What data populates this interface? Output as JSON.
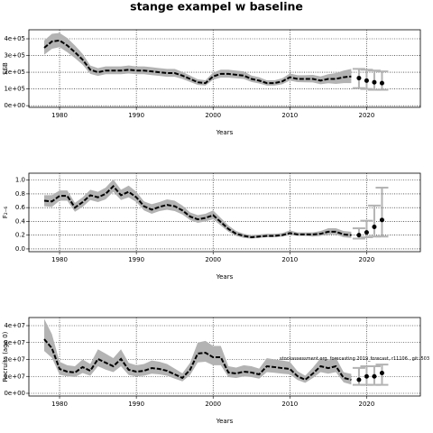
{
  "chart_data": [
    {
      "type": "line",
      "title": "stange exampel w baseline",
      "xlabel": "Years",
      "ylabel": "SSB",
      "x": [
        1978,
        1979,
        1980,
        1981,
        1982,
        1983,
        1984,
        1985,
        1986,
        1987,
        1988,
        1989,
        1990,
        1991,
        1992,
        1993,
        1994,
        1995,
        1996,
        1997,
        1998,
        1999,
        2000,
        2001,
        2002,
        2003,
        2004,
        2005,
        2006,
        2007,
        2008,
        2009,
        2010,
        2011,
        2012,
        2013,
        2014,
        2015,
        2016,
        2017,
        2018
      ],
      "values": [
        346000.0,
        384000.0,
        390000.0,
        360000.0,
        320000.0,
        275000.0,
        215000.0,
        200000.0,
        210000.0,
        210000.0,
        210000.0,
        215000.0,
        210000.0,
        210000.0,
        205000.0,
        200000.0,
        195000.0,
        195000.0,
        180000.0,
        160000.0,
        140000.0,
        135000.0,
        175000.0,
        190000.0,
        190000.0,
        185000.0,
        180000.0,
        160000.0,
        150000.0,
        135000.0,
        135000.0,
        145000.0,
        170000.0,
        160000.0,
        160000.0,
        160000.0,
        150000.0,
        160000.0,
        160000.0,
        170000.0,
        175000.0
      ],
      "low": [
        305000.0,
        340000.0,
        350000.0,
        320000.0,
        285000.0,
        245000.0,
        190000.0,
        178000.0,
        188000.0,
        188000.0,
        188000.0,
        192000.0,
        188000.0,
        188000.0,
        183000.0,
        178000.0,
        173000.0,
        173000.0,
        160000.0,
        142000.0,
        124000.0,
        120000.0,
        155000.0,
        168000.0,
        168000.0,
        164000.0,
        160000.0,
        142000.0,
        133000.0,
        120000.0,
        120000.0,
        128000.0,
        150000.0,
        141000.0,
        140000.0,
        139000.0,
        128000.0,
        134000.0,
        130000.0,
        135000.0,
        135000.0
      ],
      "high": [
        390000.0,
        430000.0,
        435000.0,
        405000.0,
        360000.0,
        310000.0,
        240000.0,
        225000.0,
        235000.0,
        235000.0,
        235000.0,
        240000.0,
        235000.0,
        235000.0,
        230000.0,
        225000.0,
        220000.0,
        220000.0,
        202000.0,
        180000.0,
        158000.0,
        152000.0,
        198000.0,
        215000.0,
        215000.0,
        210000.0,
        205000.0,
        180000.0,
        170000.0,
        152000.0,
        152000.0,
        164000.0,
        192000.0,
        182000.0,
        182000.0,
        184000.0,
        175000.0,
        188000.0,
        195000.0,
        210000.0,
        220000.0
      ],
      "forecast": {
        "x": [
          2019,
          2020,
          2021,
          2022
        ],
        "values": [
          165000.0,
          150000.0,
          140000.0,
          135000.0
        ],
        "low": [
          105000.0,
          100000.0,
          95000.0,
          95000.0
        ],
        "high": [
          220000.0,
          215000.0,
          210000.0,
          205000.0
        ]
      },
      "xlim": [
        1976,
        2027
      ],
      "xticks": [
        1980,
        1990,
        2000,
        2010,
        2020
      ],
      "ylim": [
        -10000,
        454000
      ],
      "yticks": [
        {
          "value": 0,
          "label": "0e+00"
        },
        {
          "value": 100000,
          "label": "1e+05"
        },
        {
          "value": 200000,
          "label": "2e+05"
        },
        {
          "value": 300000,
          "label": "3e+05"
        },
        {
          "value": 400000,
          "label": "4e+05"
        }
      ],
      "grid": true,
      "color": "#000000",
      "band_color": "#b3b3b3"
    },
    {
      "type": "line",
      "xlabel": "Years",
      "ylabel": "F₂₋₆",
      "x": [
        1978,
        1979,
        1980,
        1981,
        1982,
        1983,
        1984,
        1985,
        1986,
        1987,
        1988,
        1989,
        1990,
        1991,
        1992,
        1993,
        1994,
        1995,
        1996,
        1997,
        1998,
        1999,
        2000,
        2001,
        2002,
        2003,
        2004,
        2005,
        2006,
        2007,
        2008,
        2009,
        2010,
        2011,
        2012,
        2013,
        2014,
        2015,
        2016,
        2017,
        2018
      ],
      "values": [
        0.7,
        0.69,
        0.77,
        0.77,
        0.6,
        0.68,
        0.78,
        0.75,
        0.8,
        0.91,
        0.78,
        0.83,
        0.75,
        0.62,
        0.57,
        0.61,
        0.64,
        0.62,
        0.56,
        0.47,
        0.43,
        0.45,
        0.49,
        0.39,
        0.29,
        0.22,
        0.19,
        0.17,
        0.18,
        0.19,
        0.19,
        0.2,
        0.23,
        0.21,
        0.21,
        0.21,
        0.22,
        0.25,
        0.25,
        0.21,
        0.2
      ],
      "low": [
        0.62,
        0.61,
        0.7,
        0.7,
        0.54,
        0.61,
        0.71,
        0.68,
        0.72,
        0.83,
        0.71,
        0.75,
        0.68,
        0.56,
        0.51,
        0.55,
        0.57,
        0.55,
        0.5,
        0.42,
        0.38,
        0.4,
        0.43,
        0.34,
        0.25,
        0.19,
        0.16,
        0.15,
        0.16,
        0.17,
        0.17,
        0.18,
        0.2,
        0.19,
        0.19,
        0.18,
        0.19,
        0.21,
        0.21,
        0.17,
        0.16
      ],
      "high": [
        0.78,
        0.78,
        0.85,
        0.85,
        0.67,
        0.75,
        0.86,
        0.83,
        0.89,
        1.01,
        0.86,
        0.92,
        0.83,
        0.69,
        0.65,
        0.68,
        0.72,
        0.7,
        0.63,
        0.53,
        0.49,
        0.51,
        0.56,
        0.45,
        0.34,
        0.26,
        0.22,
        0.2,
        0.21,
        0.22,
        0.22,
        0.23,
        0.27,
        0.24,
        0.24,
        0.24,
        0.26,
        0.3,
        0.3,
        0.26,
        0.25
      ],
      "forecast": {
        "x": [
          2019,
          2020,
          2021,
          2022
        ],
        "values": [
          0.2,
          0.24,
          0.32,
          0.42
        ],
        "low": [
          0.15,
          0.17,
          0.18,
          0.18
        ],
        "high": [
          0.3,
          0.41,
          0.63,
          0.89
        ]
      },
      "xlim": [
        1976,
        2027
      ],
      "xticks": [
        1980,
        1990,
        2000,
        2010,
        2020
      ],
      "ylim": [
        -0.04,
        1.1
      ],
      "yticks": [
        {
          "value": 0,
          "label": "0.0"
        },
        0.2,
        0.4,
        0.6,
        0.8,
        {
          "value": 1,
          "label": "1.0"
        }
      ],
      "grid": true,
      "color": "#000000",
      "band_color": "#b3b3b3"
    },
    {
      "type": "line",
      "xlabel": "Years",
      "ylabel": "Recruits (age 0)",
      "annotation": "stockassessment.org, forecasting 2019_forecast, r11106 , git: 503",
      "x": [
        1978,
        1979,
        1980,
        1981,
        1982,
        1983,
        1984,
        1985,
        1986,
        1987,
        1988,
        1989,
        1990,
        1991,
        1992,
        1993,
        1994,
        1995,
        1996,
        1997,
        1998,
        1999,
        2000,
        2001,
        2002,
        2003,
        2004,
        2005,
        2006,
        2007,
        2008,
        2009,
        2010,
        2011,
        2012,
        2013,
        2014,
        2015,
        2016,
        2017,
        2018
      ],
      "values": [
        32000000.0,
        26700000.0,
        14400000.0,
        12800000.0,
        12300000.0,
        15500000.0,
        13300000.0,
        20300000.0,
        18100000.0,
        16000000.0,
        20300000.0,
        13900000.0,
        12800000.0,
        13300000.0,
        14900000.0,
        14400000.0,
        13300000.0,
        11200000.0,
        9100000.0,
        13900000.0,
        23500000.0,
        24000000.0,
        21300000.0,
        21300000.0,
        12300000.0,
        11700000.0,
        12800000.0,
        12300000.0,
        11200000.0,
        16000000.0,
        15500000.0,
        14900000.0,
        14400000.0,
        10100000.0,
        8000000.0,
        11700000.0,
        16000000.0,
        14900000.0,
        16000000.0,
        9100000.0,
        8000000.0
      ],
      "low": [
        25000000.0,
        21000000.0,
        11000000.0,
        10000000.0,
        9600000.0,
        12000000.0,
        10400000.0,
        16000000.0,
        14000000.0,
        12500000.0,
        16000000.0,
        10800000.0,
        10000000.0,
        10400000.0,
        11600000.0,
        11200000.0,
        10400000.0,
        8700000.0,
        7100000.0,
        10800000.0,
        18300000.0,
        18700000.0,
        16600000.0,
        16600000.0,
        9600000.0,
        9100000.0,
        10000000.0,
        9600000.0,
        8700000.0,
        12500000.0,
        12100000.0,
        11600000.0,
        11200000.0,
        7900000.0,
        6200000.0,
        9100000.0,
        12500000.0,
        11600000.0,
        12500000.0,
        6500000.0,
        5200000.0
      ],
      "high": [
        44000000.0,
        35000000.0,
        18700000.0,
        16600000.0,
        16000000.0,
        20000000.0,
        17300000.0,
        26000000.0,
        23500000.0,
        20800000.0,
        26000000.0,
        18000000.0,
        16600000.0,
        17300000.0,
        19400000.0,
        18700000.0,
        17300000.0,
        14600000.0,
        11800000.0,
        18000000.0,
        30000000.0,
        31000000.0,
        28000000.0,
        28000000.0,
        16000000.0,
        15200000.0,
        16600000.0,
        16000000.0,
        14600000.0,
        20800000.0,
        20000000.0,
        19400000.0,
        18700000.0,
        13100000.0,
        10400000.0,
        15200000.0,
        20800000.0,
        19400000.0,
        21000000.0,
        12500000.0,
        11500000.0
      ],
      "forecast": {
        "x": [
          2019,
          2020,
          2021,
          2022
        ],
        "values": [
          8000000.0,
          10000000.0,
          10000000.0,
          12000000.0
        ],
        "low": [
          5000000.0,
          5000000.0,
          5000000.0,
          5000000.0
        ],
        "high": [
          15000000.0,
          16000000.0,
          16000000.0,
          17000000.0
        ]
      },
      "xlim": [
        1976,
        2027
      ],
      "xticks": [
        1980,
        1990,
        2000,
        2010,
        2020
      ],
      "ylim": [
        -1600000.0,
        44800000.0
      ],
      "yticks": [
        {
          "value": 0,
          "label": "0e+00"
        },
        {
          "value": 10000000.0,
          "label": "1e+07"
        },
        {
          "value": 20000000.0,
          "label": "2e+07"
        },
        {
          "value": 30000000.0,
          "label": "3e+07"
        },
        {
          "value": 40000000.0,
          "label": "4e+07"
        }
      ],
      "grid": true,
      "color": "#000000",
      "band_color": "#b3b3b3"
    }
  ]
}
